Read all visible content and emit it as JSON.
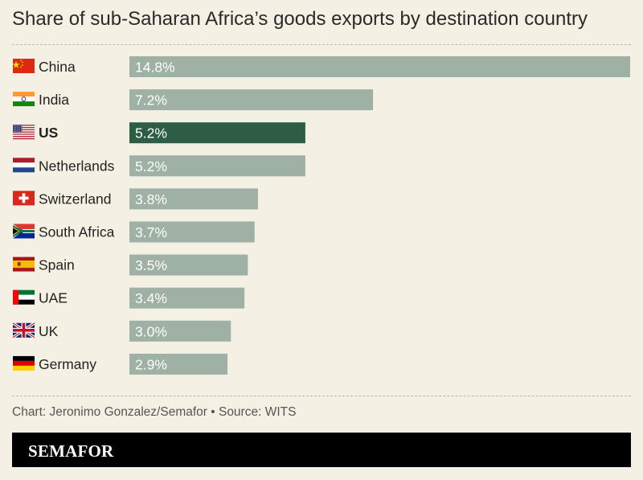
{
  "title": "Share of sub-Saharan Africa’s goods exports by destination country",
  "source": "Chart: Jeronimo Gonzalez/Semafor • Source: WITS",
  "brand": "SEMAFOR",
  "colors": {
    "background": "#f4f1e4",
    "bar": "#9eb1a4",
    "highlight_bar": "#2e5d45",
    "footer": "#000000"
  },
  "chart_data": {
    "type": "bar",
    "orientation": "horizontal",
    "title": "Share of sub-Saharan Africa’s goods exports by destination country",
    "categories": [
      "China",
      "India",
      "US",
      "Netherlands",
      "Switzerland",
      "South Africa",
      "Spain",
      "UAE",
      "UK",
      "Germany"
    ],
    "values": [
      14.8,
      7.2,
      5.2,
      5.2,
      3.8,
      3.7,
      3.5,
      3.4,
      3.0,
      2.9
    ],
    "labels": [
      "14.8%",
      "7.2%",
      "5.2%",
      "5.2%",
      "3.8%",
      "3.7%",
      "3.5%",
      "3.4%",
      "3.0%",
      "2.9%"
    ],
    "flags": [
      "china-flag",
      "india-flag",
      "us-flag",
      "netherlands-flag",
      "switzerland-flag",
      "south-africa-flag",
      "spain-flag",
      "uae-flag",
      "uk-flag",
      "germany-flag"
    ],
    "highlight": "US",
    "unit": "%",
    "xlim": [
      0,
      14.8
    ],
    "grid": false,
    "legend": "none"
  }
}
